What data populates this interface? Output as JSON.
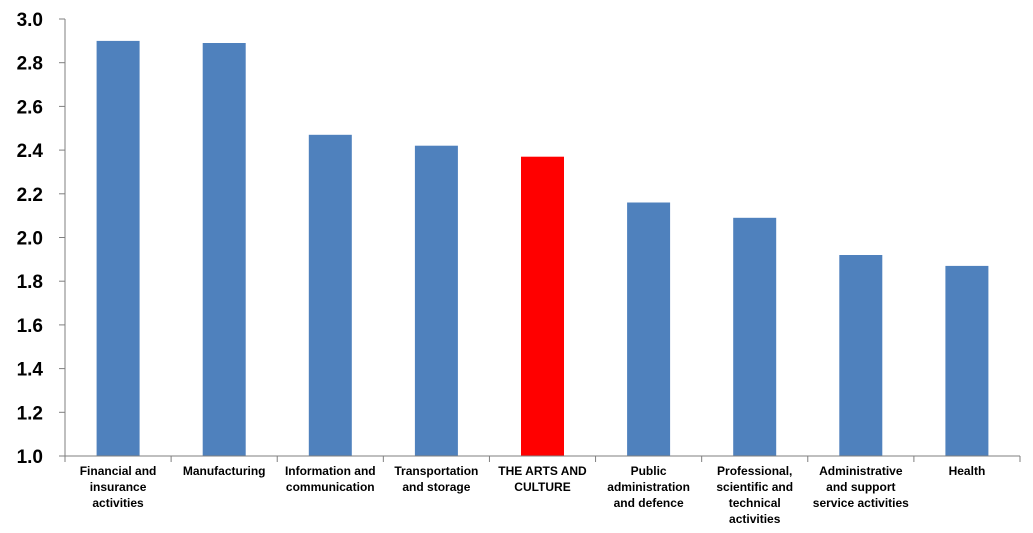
{
  "chart_data": {
    "type": "bar",
    "title": "",
    "xlabel": "",
    "ylabel": "",
    "ylim": [
      1.0,
      3.0
    ],
    "yticks": [
      "1.0",
      "1.2",
      "1.4",
      "1.6",
      "1.8",
      "2.0",
      "2.2",
      "2.4",
      "2.6",
      "2.8",
      "3.0"
    ],
    "grid": false,
    "legend": "none",
    "colors": {
      "default": "#4f81bd",
      "highlight": "#ff0000"
    },
    "categories": [
      [
        "Financial and",
        "insurance",
        "activities"
      ],
      [
        "Manufacturing"
      ],
      [
        "Information and",
        "communication"
      ],
      [
        "Transportation",
        "and storage"
      ],
      [
        "THE ARTS AND",
        "CULTURE"
      ],
      [
        "Public",
        "administration",
        "and defence"
      ],
      [
        "Professional,",
        "scientific and",
        "technical",
        "activities"
      ],
      [
        "Administrative",
        "and support",
        "service activities"
      ],
      [
        "Health"
      ]
    ],
    "values": [
      2.9,
      2.89,
      2.47,
      2.42,
      2.37,
      2.16,
      2.09,
      1.92,
      1.87
    ],
    "highlight_index": 4
  }
}
